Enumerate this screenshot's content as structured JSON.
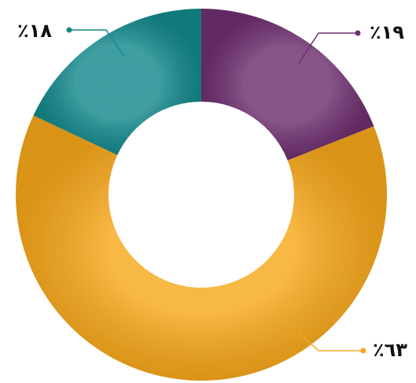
{
  "chart_data": {
    "type": "donut",
    "values": [
      19,
      63,
      18
    ],
    "value_labels": [
      "٪١٩",
      "٪٦٣",
      "٪١٨"
    ],
    "colors": [
      "#6e2f6e",
      "#f7a81b",
      "#14898c"
    ]
  }
}
